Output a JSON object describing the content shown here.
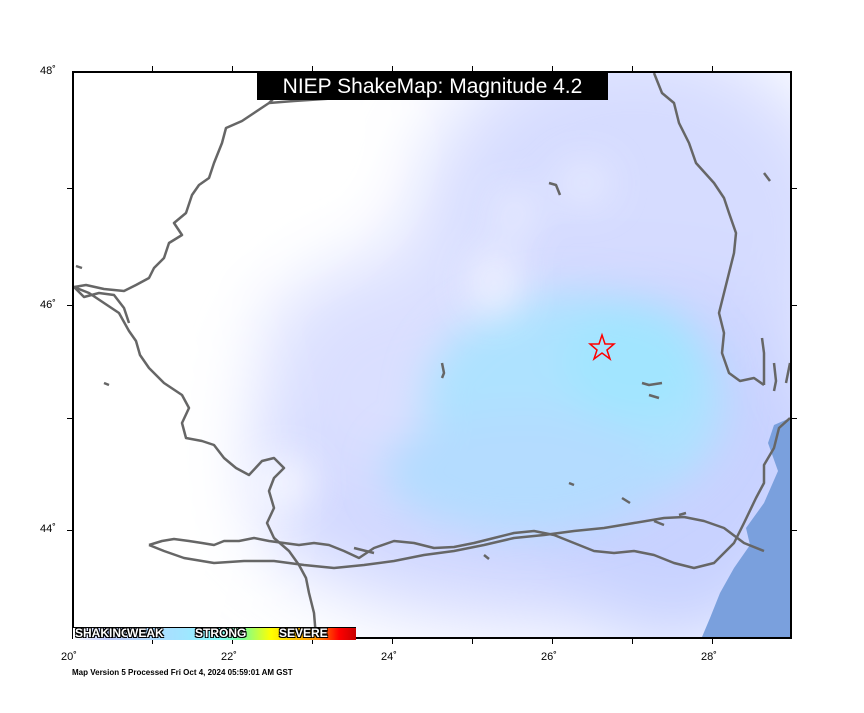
{
  "title": "NIEP ShakeMap: Magnitude 4.2",
  "axes": {
    "x_ticks": [
      "20˚",
      "22˚",
      "24˚",
      "26˚",
      "28˚"
    ],
    "y_ticks": [
      "48˚",
      "46˚",
      "44˚"
    ]
  },
  "legend": {
    "labels": [
      "SHAKING",
      "WEAK",
      "STRONG",
      "SEVERE"
    ]
  },
  "footer": "Map Version 5 Processed Fri Oct  4, 2024 05:59:01 AM GST",
  "epicenter": {
    "lon": 26.6,
    "lat": 45.65
  },
  "colors": {
    "sea": "#7aa0dd",
    "border": "#666666",
    "epicenter": "#ff0000",
    "intensity_low": "#d2d9ff",
    "intensity_mid": "#a6e3ff"
  }
}
